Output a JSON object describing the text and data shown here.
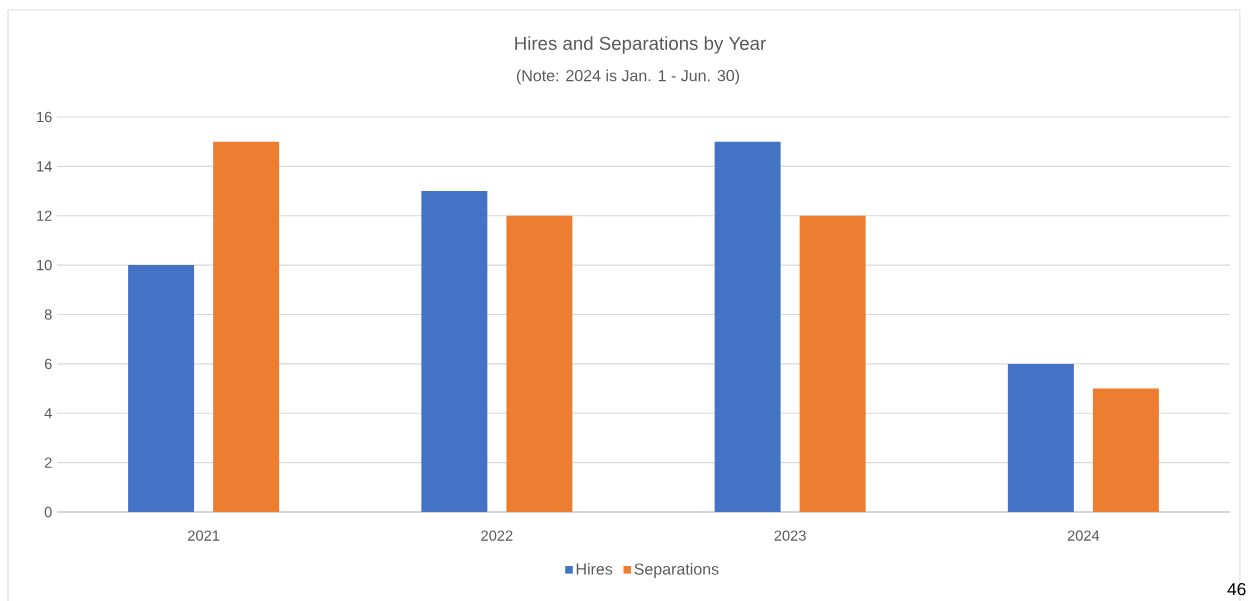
{
  "chart_data": {
    "type": "bar",
    "title": "Hires and Separations by Year",
    "subtitle": "(Note: 2024 is Jan. 1 - Jun. 30)",
    "categories": [
      "2021",
      "2022",
      "2023",
      "2024"
    ],
    "series": [
      {
        "name": "Hires",
        "color": "#4472c4",
        "values": [
          10,
          13,
          15,
          6
        ]
      },
      {
        "name": "Separations",
        "color": "#ed7d31",
        "values": [
          15,
          12,
          12,
          5
        ]
      }
    ],
    "ylim": [
      0,
      16
    ],
    "yticks": [
      0,
      2,
      4,
      6,
      8,
      10,
      12,
      14,
      16
    ],
    "grid": "y",
    "legend": "bottom",
    "annotations": [
      "46"
    ]
  }
}
